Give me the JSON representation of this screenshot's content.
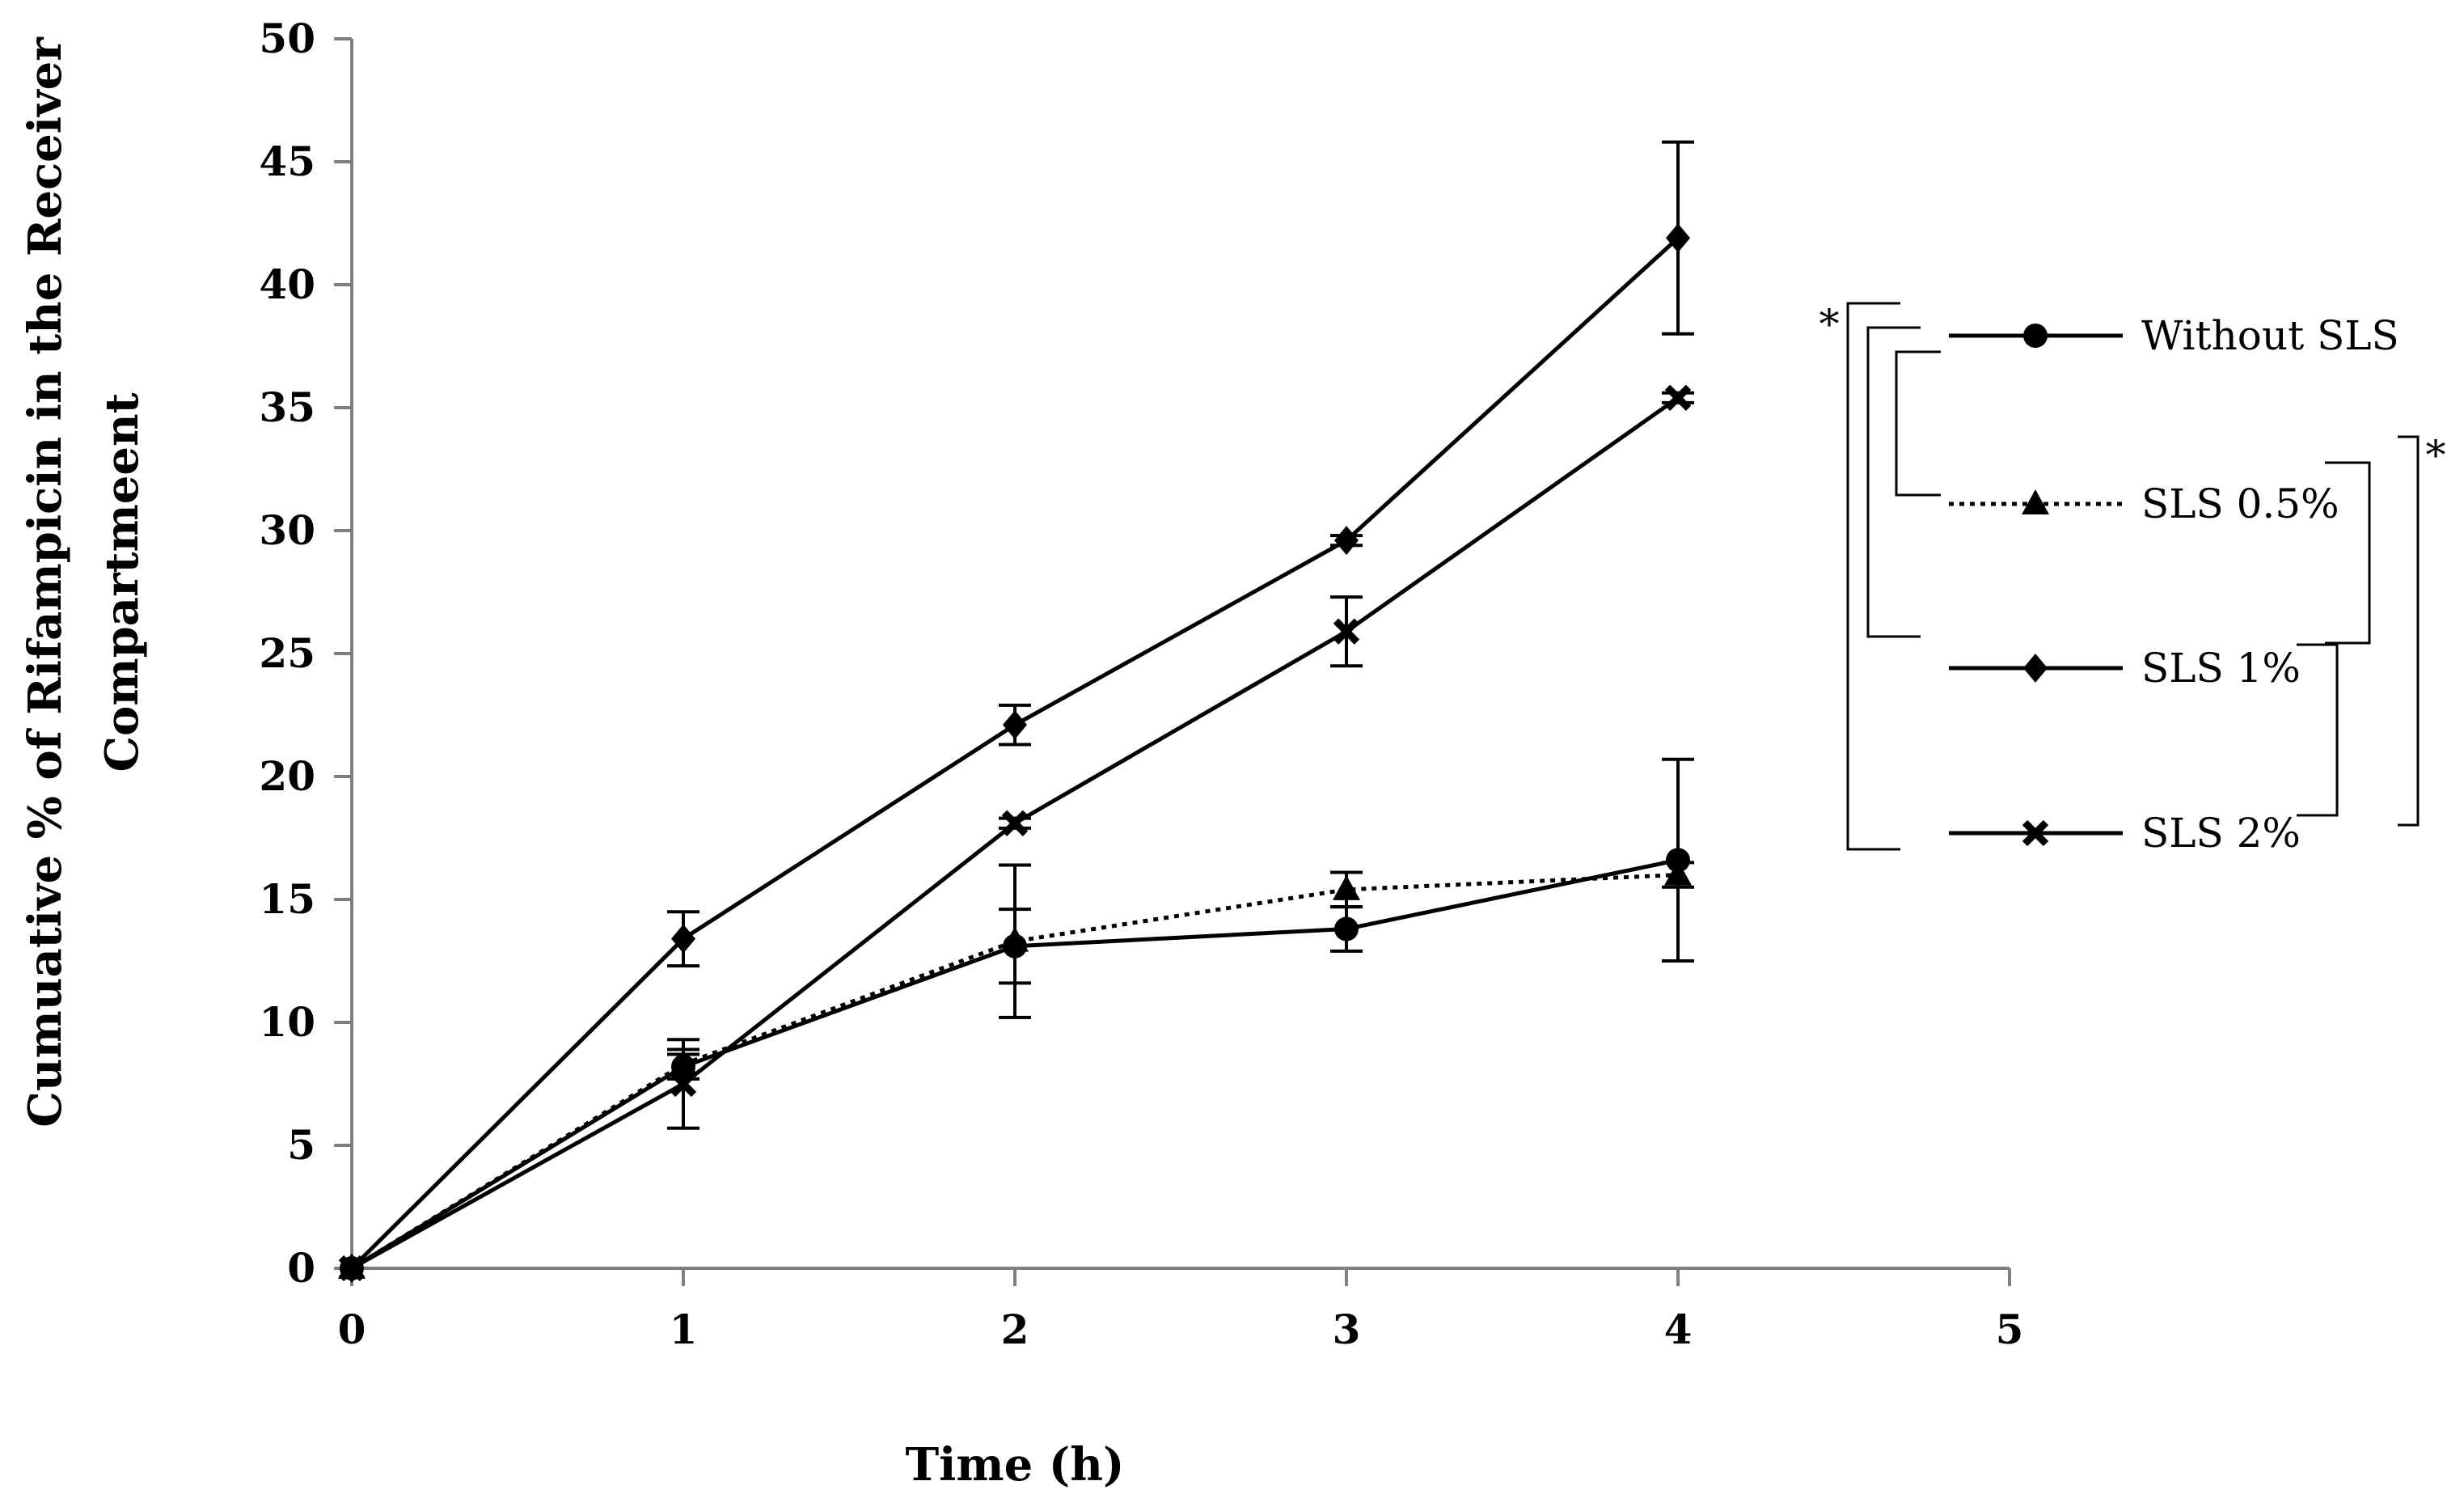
{
  "chart_data": {
    "type": "line",
    "title": "",
    "xlabel": "Time (h)",
    "ylabel": [
      "Cumuative % of  Rifampicin in the Receiver",
      "Compartmeent"
    ],
    "xlim": [
      0,
      5
    ],
    "ylim": [
      0,
      50
    ],
    "x_ticks": [
      0,
      1,
      2,
      3,
      4,
      5
    ],
    "y_ticks": [
      0,
      5,
      10,
      15,
      20,
      25,
      30,
      35,
      40,
      45,
      50
    ],
    "grid": false,
    "legend_position": "right",
    "series": [
      {
        "name": "Without SLS",
        "marker": "circle",
        "dash": "solid",
        "x": [
          0,
          1,
          2,
          3,
          4
        ],
        "y": [
          0,
          8.2,
          13.1,
          13.8,
          16.6
        ],
        "err": [
          0,
          0.5,
          1.5,
          0.9,
          4.1
        ]
      },
      {
        "name": "SLS 0.5%",
        "marker": "triangle",
        "dash": "dotted",
        "x": [
          0,
          1,
          2,
          3,
          4
        ],
        "y": [
          0,
          8.3,
          13.3,
          15.4,
          16.0
        ],
        "err": [
          0,
          0.6,
          3.1,
          0.7,
          0.5
        ]
      },
      {
        "name": "SLS 1%",
        "marker": "diamond",
        "dash": "solid",
        "x": [
          0,
          1,
          2,
          3,
          4
        ],
        "y": [
          0,
          13.4,
          22.1,
          29.6,
          41.9
        ],
        "err": [
          0,
          1.1,
          0.8,
          0.2,
          3.9
        ]
      },
      {
        "name": "SLS 2%",
        "marker": "x",
        "dash": "solid",
        "x": [
          0,
          1,
          2,
          3,
          4
        ],
        "y": [
          0,
          7.5,
          18.1,
          25.9,
          35.4
        ],
        "err": [
          0,
          1.8,
          0.2,
          1.4,
          0.2
        ]
      }
    ],
    "annotations": {
      "left_bracket_symbol": "*",
      "right_bracket_symbol": "*"
    }
  }
}
